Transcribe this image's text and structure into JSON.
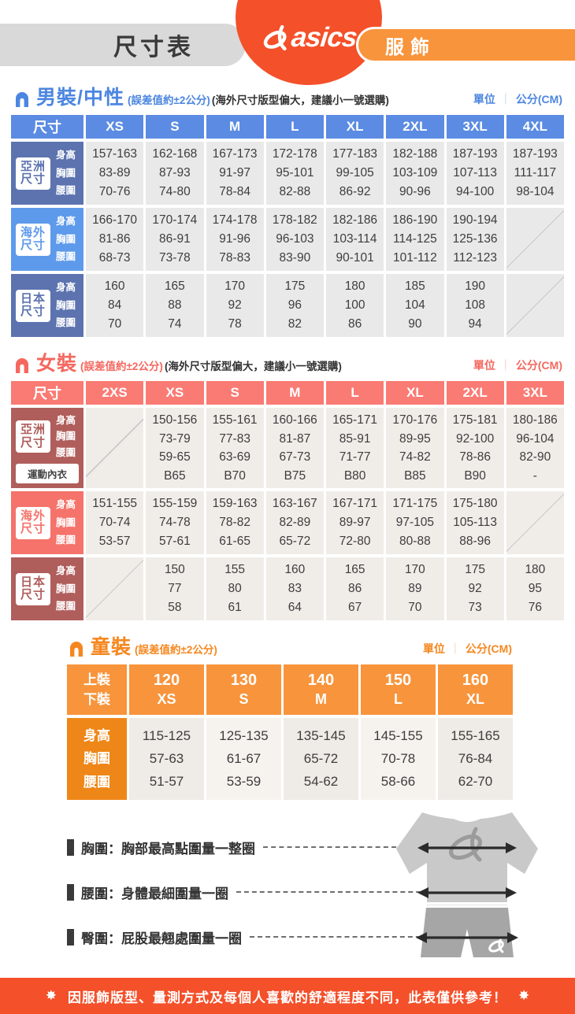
{
  "banner": {
    "title": "尺寸表",
    "brand": "asics",
    "badge": "服飾"
  },
  "units": {
    "label": "單位",
    "value": "公分(CM)"
  },
  "sections": {
    "men": {
      "title": "男裝/中性",
      "tolerance": "(誤差值約±2公分)",
      "note": "(海外尺寸版型偏大，建議小一號選購)",
      "corner_label": "尺寸",
      "sizes": [
        "XS",
        "S",
        "M",
        "L",
        "XL",
        "2XL",
        "3XL",
        "4XL"
      ],
      "colors": {
        "title": "#4C86E0",
        "header": "#5B8BE2",
        "muted": "#5C73AF",
        "bright": "#5E9AEB",
        "cell": "#E9E9E9"
      },
      "blocks": [
        {
          "region": "亞洲尺寸",
          "tone": "muted",
          "row_labels": [
            "身高",
            "胸圍",
            "腰圍"
          ],
          "rows": [
            [
              "157-163",
              "162-168",
              "167-173",
              "172-178",
              "177-183",
              "182-188",
              "187-193",
              "187-193"
            ],
            [
              "83-89",
              "87-93",
              "91-97",
              "95-101",
              "99-105",
              "103-109",
              "107-113",
              "111-117"
            ],
            [
              "70-76",
              "74-80",
              "78-84",
              "82-88",
              "86-92",
              "90-96",
              "94-100",
              "98-104"
            ]
          ]
        },
        {
          "region": "海外尺寸",
          "tone": "bright",
          "row_labels": [
            "身高",
            "胸圍",
            "腰圍"
          ],
          "rows": [
            [
              "166-170",
              "170-174",
              "174-178",
              "178-182",
              "182-186",
              "186-190",
              "190-194",
              ""
            ],
            [
              "81-86",
              "86-91",
              "91-96",
              "96-103",
              "103-114",
              "114-125",
              "125-136",
              ""
            ],
            [
              "68-73",
              "73-78",
              "78-83",
              "83-90",
              "90-101",
              "101-112",
              "112-123",
              ""
            ]
          ]
        },
        {
          "region": "日本尺寸",
          "tone": "muted",
          "row_labels": [
            "身高",
            "胸圍",
            "腰圍"
          ],
          "rows": [
            [
              "160",
              "165",
              "170",
              "175",
              "180",
              "185",
              "190",
              ""
            ],
            [
              "84",
              "88",
              "92",
              "96",
              "100",
              "104",
              "108",
              ""
            ],
            [
              "70",
              "74",
              "78",
              "82",
              "86",
              "90",
              "94",
              ""
            ]
          ]
        }
      ]
    },
    "women": {
      "title": "女裝",
      "tolerance": "(誤差值約±2公分)",
      "note": "(海外尺寸版型偏大，建議小一號選購)",
      "corner_label": "尺寸",
      "sizes": [
        "2XS",
        "XS",
        "S",
        "M",
        "L",
        "XL",
        "2XL",
        "3XL"
      ],
      "colors": {
        "title": "#F4685F",
        "header": "#F97B74",
        "muted": "#B05E5C",
        "bright": "#F5736B",
        "cell": "#F0EDE9"
      },
      "blocks": [
        {
          "region": "亞洲尺寸",
          "tone": "muted",
          "row_labels": [
            "身高",
            "胸圍",
            "腰圍"
          ],
          "extra_label": "運動內衣",
          "rows": [
            [
              "",
              "150-156",
              "155-161",
              "160-166",
              "165-171",
              "170-176",
              "175-181",
              "180-186"
            ],
            [
              "",
              "73-79",
              "77-83",
              "81-87",
              "85-91",
              "89-95",
              "92-100",
              "96-104"
            ],
            [
              "",
              "59-65",
              "63-69",
              "67-73",
              "71-77",
              "74-82",
              "78-86",
              "82-90"
            ],
            [
              "",
              "B65",
              "B70",
              "B75",
              "B80",
              "B85",
              "B90",
              "-"
            ]
          ]
        },
        {
          "region": "海外尺寸",
          "tone": "bright",
          "row_labels": [
            "身高",
            "胸圍",
            "腰圍"
          ],
          "rows": [
            [
              "151-155",
              "155-159",
              "159-163",
              "163-167",
              "167-171",
              "171-175",
              "175-180",
              ""
            ],
            [
              "70-74",
              "74-78",
              "78-82",
              "82-89",
              "89-97",
              "97-105",
              "105-113",
              ""
            ],
            [
              "53-57",
              "57-61",
              "61-65",
              "65-72",
              "72-80",
              "80-88",
              "88-96",
              ""
            ]
          ]
        },
        {
          "region": "日本尺寸",
          "tone": "muted",
          "row_labels": [
            "身高",
            "胸圍",
            "腰圍"
          ],
          "rows": [
            [
              "",
              "150",
              "155",
              "160",
              "165",
              "170",
              "175",
              "180"
            ],
            [
              "",
              "77",
              "80",
              "83",
              "86",
              "89",
              "92",
              "95"
            ],
            [
              "",
              "58",
              "61",
              "64",
              "67",
              "70",
              "73",
              "76"
            ]
          ]
        }
      ]
    },
    "kids": {
      "title": "童裝",
      "tolerance": "(誤差值約±2公分)",
      "corner_top": "上裝",
      "corner_bottom": "下裝",
      "sizes_top": [
        "120",
        "130",
        "140",
        "150",
        "160"
      ],
      "sizes_bottom": [
        "XS",
        "S",
        "M",
        "L",
        "XL"
      ],
      "row_labels": [
        "身高",
        "胸圍",
        "腰圍"
      ],
      "colors": {
        "title": "#F5871F",
        "header": "#F8943B",
        "label": "#EE8718",
        "cellA": "#EFEBE6",
        "cellB": "#F6F3EF"
      },
      "rows": [
        [
          "115-125",
          "125-135",
          "135-145",
          "145-155",
          "155-165"
        ],
        [
          "57-63",
          "61-67",
          "65-72",
          "70-78",
          "76-84"
        ],
        [
          "51-57",
          "53-59",
          "54-62",
          "58-66",
          "62-70"
        ]
      ]
    }
  },
  "legend": {
    "items": [
      "胸圍：胸部最高點圍量一整圈",
      "腰圍：身體最細圍量一圈",
      "臀圍：屁股最翹處圍量一圈"
    ]
  },
  "footer": {
    "star": "✸",
    "text": "因服飾版型、量測方式及每個人喜歡的舒適程度不同，此表僅供參考！"
  }
}
